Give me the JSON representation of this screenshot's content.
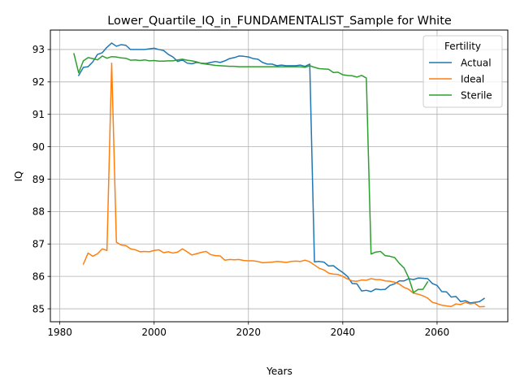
{
  "chart_data": {
    "type": "line",
    "title": "Lower_Quartile_IQ_in_FUNDAMENTALIST_Sample for White",
    "xlabel": "Years",
    "ylabel": "IQ",
    "xlim": [
      1978,
      2075
    ],
    "ylim": [
      84.6,
      93.6
    ],
    "xticks": [
      1980,
      2000,
      2020,
      2040,
      2060
    ],
    "yticks": [
      85,
      86,
      87,
      88,
      89,
      90,
      91,
      92,
      93
    ],
    "grid": true,
    "legend": {
      "title": "Fertility",
      "placement": "top-right"
    },
    "series": [
      {
        "name": "Actual",
        "color": "#1f77b4",
        "points": [
          [
            1984,
            92.2
          ],
          [
            1985,
            92.45
          ],
          [
            1986,
            92.47
          ],
          [
            1987,
            92.62
          ],
          [
            1988,
            92.85
          ],
          [
            1989,
            92.9
          ],
          [
            1990,
            93.07
          ],
          [
            1991,
            93.2
          ],
          [
            1992,
            93.1
          ],
          [
            1993,
            93.15
          ],
          [
            1994,
            93.13
          ],
          [
            1995,
            93.0
          ],
          [
            1996,
            93.0
          ],
          [
            1997,
            93.0
          ],
          [
            1998,
            93.0
          ],
          [
            1999,
            93.02
          ],
          [
            2000,
            93.04
          ],
          [
            2001,
            93.0
          ],
          [
            2002,
            92.97
          ],
          [
            2003,
            92.85
          ],
          [
            2004,
            92.77
          ],
          [
            2005,
            92.63
          ],
          [
            2006,
            92.68
          ],
          [
            2007,
            92.58
          ],
          [
            2008,
            92.56
          ],
          [
            2009,
            92.6
          ],
          [
            2010,
            92.58
          ],
          [
            2011,
            92.57
          ],
          [
            2012,
            92.6
          ],
          [
            2013,
            92.63
          ],
          [
            2014,
            92.6
          ],
          [
            2015,
            92.65
          ],
          [
            2016,
            92.72
          ],
          [
            2017,
            92.75
          ],
          [
            2018,
            92.8
          ],
          [
            2019,
            92.79
          ],
          [
            2020,
            92.77
          ],
          [
            2021,
            92.72
          ],
          [
            2022,
            92.7
          ],
          [
            2023,
            92.6
          ],
          [
            2024,
            92.55
          ],
          [
            2025,
            92.55
          ],
          [
            2026,
            92.5
          ],
          [
            2027,
            92.52
          ],
          [
            2028,
            92.5
          ],
          [
            2029,
            92.5
          ],
          [
            2030,
            92.5
          ],
          [
            2031,
            92.52
          ],
          [
            2032,
            92.48
          ],
          [
            2033,
            92.55
          ],
          [
            2034,
            86.45
          ],
          [
            2035,
            86.46
          ],
          [
            2036,
            86.44
          ],
          [
            2037,
            86.32
          ],
          [
            2038,
            86.33
          ],
          [
            2039,
            86.22
          ],
          [
            2040,
            86.12
          ],
          [
            2041,
            86.0
          ],
          [
            2042,
            85.78
          ],
          [
            2043,
            85.77
          ],
          [
            2044,
            85.55
          ],
          [
            2045,
            85.57
          ],
          [
            2046,
            85.53
          ],
          [
            2047,
            85.61
          ],
          [
            2048,
            85.59
          ],
          [
            2049,
            85.6
          ],
          [
            2050,
            85.72
          ],
          [
            2051,
            85.77
          ],
          [
            2052,
            85.86
          ],
          [
            2053,
            85.86
          ],
          [
            2054,
            85.93
          ],
          [
            2055,
            85.9
          ],
          [
            2056,
            85.95
          ],
          [
            2057,
            85.94
          ],
          [
            2058,
            85.93
          ],
          [
            2059,
            85.78
          ],
          [
            2060,
            85.72
          ],
          [
            2061,
            85.53
          ],
          [
            2062,
            85.52
          ],
          [
            2063,
            85.36
          ],
          [
            2064,
            85.38
          ],
          [
            2065,
            85.22
          ],
          [
            2066,
            85.25
          ],
          [
            2067,
            85.18
          ],
          [
            2068,
            85.2
          ],
          [
            2069,
            85.22
          ],
          [
            2070,
            85.32
          ]
        ]
      },
      {
        "name": "Ideal",
        "color": "#ff7f0e",
        "points": [
          [
            1985,
            86.38
          ],
          [
            1986,
            86.72
          ],
          [
            1987,
            86.62
          ],
          [
            1988,
            86.7
          ],
          [
            1989,
            86.85
          ],
          [
            1990,
            86.8
          ],
          [
            1991,
            92.58
          ],
          [
            1992,
            87.05
          ],
          [
            1993,
            86.97
          ],
          [
            1994,
            86.95
          ],
          [
            1995,
            86.85
          ],
          [
            1996,
            86.82
          ],
          [
            1997,
            86.76
          ],
          [
            1998,
            86.77
          ],
          [
            1999,
            86.76
          ],
          [
            2000,
            86.8
          ],
          [
            2001,
            86.82
          ],
          [
            2002,
            86.73
          ],
          [
            2003,
            86.76
          ],
          [
            2004,
            86.72
          ],
          [
            2005,
            86.75
          ],
          [
            2006,
            86.85
          ],
          [
            2007,
            86.76
          ],
          [
            2008,
            86.66
          ],
          [
            2009,
            86.7
          ],
          [
            2010,
            86.74
          ],
          [
            2011,
            86.77
          ],
          [
            2012,
            86.67
          ],
          [
            2013,
            86.64
          ],
          [
            2014,
            86.63
          ],
          [
            2015,
            86.5
          ],
          [
            2016,
            86.52
          ],
          [
            2017,
            86.51
          ],
          [
            2018,
            86.52
          ],
          [
            2019,
            86.49
          ],
          [
            2020,
            86.48
          ],
          [
            2021,
            86.48
          ],
          [
            2022,
            86.46
          ],
          [
            2023,
            86.42
          ],
          [
            2024,
            86.43
          ],
          [
            2025,
            86.44
          ],
          [
            2026,
            86.46
          ],
          [
            2027,
            86.45
          ],
          [
            2028,
            86.43
          ],
          [
            2029,
            86.46
          ],
          [
            2030,
            86.47
          ],
          [
            2031,
            86.46
          ],
          [
            2032,
            86.5
          ],
          [
            2033,
            86.45
          ],
          [
            2034,
            86.35
          ],
          [
            2035,
            86.25
          ],
          [
            2036,
            86.2
          ],
          [
            2037,
            86.1
          ],
          [
            2038,
            86.07
          ],
          [
            2039,
            86.06
          ],
          [
            2040,
            86.0
          ],
          [
            2041,
            85.92
          ],
          [
            2042,
            85.86
          ],
          [
            2043,
            85.85
          ],
          [
            2044,
            85.89
          ],
          [
            2045,
            85.88
          ],
          [
            2046,
            85.93
          ],
          [
            2047,
            85.9
          ],
          [
            2048,
            85.9
          ],
          [
            2049,
            85.86
          ],
          [
            2050,
            85.85
          ],
          [
            2051,
            85.82
          ],
          [
            2052,
            85.76
          ],
          [
            2053,
            85.66
          ],
          [
            2054,
            85.6
          ],
          [
            2055,
            85.48
          ],
          [
            2056,
            85.45
          ],
          [
            2057,
            85.4
          ],
          [
            2058,
            85.33
          ],
          [
            2059,
            85.2
          ],
          [
            2060,
            85.16
          ],
          [
            2061,
            85.11
          ],
          [
            2062,
            85.09
          ],
          [
            2063,
            85.07
          ],
          [
            2064,
            85.15
          ],
          [
            2065,
            85.13
          ],
          [
            2066,
            85.2
          ],
          [
            2067,
            85.15
          ],
          [
            2068,
            85.17
          ],
          [
            2069,
            85.06
          ],
          [
            2070,
            85.07
          ]
        ]
      },
      {
        "name": "Sterile",
        "color": "#2ca02c",
        "points": [
          [
            1983,
            92.87
          ],
          [
            1984,
            92.28
          ],
          [
            1985,
            92.65
          ],
          [
            1986,
            92.75
          ],
          [
            1987,
            92.72
          ],
          [
            1988,
            92.68
          ],
          [
            1989,
            92.8
          ],
          [
            1990,
            92.73
          ],
          [
            1991,
            92.78
          ],
          [
            1992,
            92.77
          ],
          [
            1993,
            92.74
          ],
          [
            1994,
            92.73
          ],
          [
            1995,
            92.67
          ],
          [
            1996,
            92.68
          ],
          [
            1997,
            92.66
          ],
          [
            1998,
            92.68
          ],
          [
            1999,
            92.65
          ],
          [
            2000,
            92.66
          ],
          [
            2001,
            92.64
          ],
          [
            2002,
            92.64
          ],
          [
            2003,
            92.65
          ],
          [
            2004,
            92.65
          ],
          [
            2005,
            92.68
          ],
          [
            2006,
            92.7
          ],
          [
            2007,
            92.67
          ],
          [
            2008,
            92.65
          ],
          [
            2009,
            92.62
          ],
          [
            2010,
            92.57
          ],
          [
            2011,
            92.55
          ],
          [
            2012,
            92.53
          ],
          [
            2013,
            92.51
          ],
          [
            2014,
            92.5
          ],
          [
            2015,
            92.49
          ],
          [
            2016,
            92.48
          ],
          [
            2017,
            92.48
          ],
          [
            2018,
            92.47
          ],
          [
            2019,
            92.47
          ],
          [
            2020,
            92.47
          ],
          [
            2021,
            92.47
          ],
          [
            2022,
            92.47
          ],
          [
            2023,
            92.47
          ],
          [
            2024,
            92.47
          ],
          [
            2025,
            92.47
          ],
          [
            2026,
            92.47
          ],
          [
            2027,
            92.47
          ],
          [
            2028,
            92.47
          ],
          [
            2029,
            92.47
          ],
          [
            2030,
            92.47
          ],
          [
            2031,
            92.47
          ],
          [
            2032,
            92.45
          ],
          [
            2033,
            92.5
          ],
          [
            2034,
            92.45
          ],
          [
            2035,
            92.41
          ],
          [
            2036,
            92.4
          ],
          [
            2037,
            92.39
          ],
          [
            2038,
            92.29
          ],
          [
            2039,
            92.3
          ],
          [
            2040,
            92.22
          ],
          [
            2041,
            92.2
          ],
          [
            2042,
            92.19
          ],
          [
            2043,
            92.15
          ],
          [
            2044,
            92.2
          ],
          [
            2045,
            92.12
          ],
          [
            2046,
            86.69
          ],
          [
            2047,
            86.75
          ],
          [
            2048,
            86.77
          ],
          [
            2049,
            86.64
          ],
          [
            2050,
            86.62
          ],
          [
            2051,
            86.58
          ],
          [
            2052,
            86.4
          ],
          [
            2053,
            86.26
          ],
          [
            2054,
            85.95
          ],
          [
            2055,
            85.5
          ],
          [
            2056,
            85.6
          ],
          [
            2057,
            85.6
          ],
          [
            2058,
            85.83
          ]
        ]
      }
    ]
  }
}
